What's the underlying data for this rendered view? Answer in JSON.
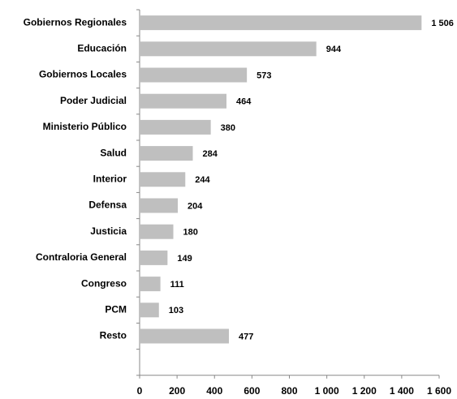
{
  "chart_data": {
    "type": "bar",
    "orientation": "horizontal",
    "categories": [
      "Gobiernos Regionales",
      "Educación",
      "Gobiernos Locales",
      "Poder Judicial",
      "Ministerio Público",
      "Salud",
      "Interior",
      "Defensa",
      "Justicia",
      "Contraloria General",
      "Congreso",
      "PCM",
      "Resto"
    ],
    "values": [
      1506,
      944,
      573,
      464,
      380,
      284,
      244,
      204,
      180,
      149,
      111,
      103,
      477
    ],
    "value_labels": [
      "1 506",
      "944",
      "573",
      "464",
      "380",
      "284",
      "244",
      "204",
      "180",
      "149",
      "111",
      "103",
      "477"
    ],
    "color": "#bfbfbf",
    "xlim": [
      0,
      1600
    ],
    "xticks": [
      0,
      200,
      400,
      600,
      800,
      {
        "value": 1000,
        "label": "1 000"
      },
      {
        "value": 1200,
        "label": "1 200"
      },
      {
        "value": 1400,
        "label": "1 400"
      },
      {
        "value": 1600,
        "label": "1 600"
      }
    ]
  }
}
